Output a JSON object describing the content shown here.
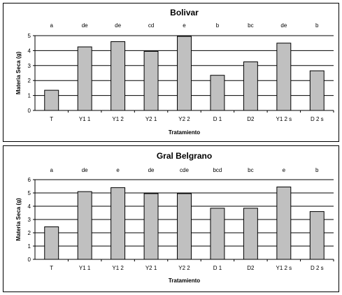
{
  "chart_data": [
    {
      "type": "bar",
      "title": "Bolivar",
      "xlabel": "Tratamiento",
      "ylabel": "Materia Seca (g)",
      "ylim": [
        0,
        5
      ],
      "yticks": [
        "0",
        "1",
        "2",
        "3",
        "4",
        "5"
      ],
      "grid": true,
      "categories": [
        "T",
        "Y1 1",
        "Y1 2",
        "Y2 1",
        "Y2 2",
        "D 1",
        "D2",
        "Y1 2 s",
        "D 2 s"
      ],
      "values": [
        1.35,
        4.25,
        4.6,
        3.95,
        4.95,
        2.35,
        3.25,
        4.5,
        2.65
      ],
      "letters": [
        "a",
        "de",
        "de",
        "cd",
        "e",
        "b",
        "bc",
        "de",
        "b"
      ],
      "bar_color": "#c0c0c0"
    },
    {
      "type": "bar",
      "title": "Gral Belgrano",
      "xlabel": "Tratamiento",
      "ylabel": "Materia Seca (g)",
      "ylim": [
        0,
        6
      ],
      "yticks": [
        "0",
        "1",
        "2",
        "3",
        "4",
        "5",
        "6"
      ],
      "grid": true,
      "categories": [
        "T",
        "Y1 1",
        "Y1 2",
        "Y2 1",
        "Y2 2",
        "D 1",
        "D2",
        "Y1 2 s",
        "D 2 s"
      ],
      "values": [
        2.45,
        5.1,
        5.4,
        4.95,
        4.95,
        3.85,
        3.85,
        5.45,
        3.6
      ],
      "letters": [
        "a",
        "de",
        "e",
        "de",
        "cde",
        "bcd",
        "bc",
        "e",
        "b"
      ],
      "bar_color": "#c0c0c0"
    }
  ]
}
